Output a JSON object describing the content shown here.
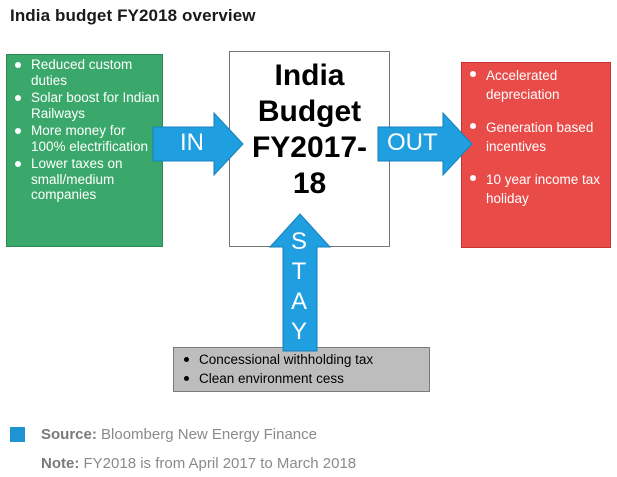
{
  "title": "India budget FY2018 overview",
  "center": {
    "lines": [
      "India",
      "Budget",
      "FY2017-",
      "18"
    ]
  },
  "in_box": {
    "arrow_label": "IN",
    "items": [
      "Reduced custom duties",
      "Solar boost for Indian Railways",
      "More money for 100% electrification",
      "Lower taxes on small/medium companies"
    ]
  },
  "out_box": {
    "arrow_label": "OUT",
    "items": [
      "Accelerated depreciation",
      "Generation based incentives",
      "10 year income tax holiday"
    ]
  },
  "stay_box": {
    "arrow_letters": [
      "S",
      "T",
      "A",
      "Y"
    ],
    "items": [
      "Concessional withholding tax",
      "Clean environment cess"
    ]
  },
  "footer": {
    "source_label": "Source:",
    "source_text": "Bloomberg New Energy Finance",
    "note_label": "Note:",
    "note_text": "FY2018 is from April 2017 to March 2018"
  },
  "colors": {
    "in": "#3aa86a",
    "out": "#e84b48",
    "stay": "#bdbdbd",
    "arrow": "#1f9fe0",
    "legend": "#1f94d2"
  }
}
